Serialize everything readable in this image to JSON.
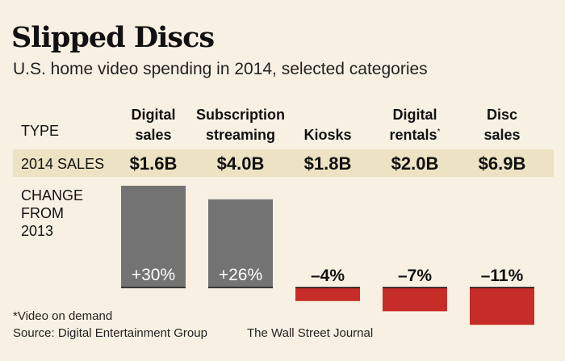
{
  "title": "Slipped Discs",
  "subtitle": "U.S. home video spending in 2014, selected categories",
  "row_labels": {
    "type": "TYPE",
    "sales": "2014 SALES",
    "change": [
      "CHANGE",
      "FROM",
      "2013"
    ]
  },
  "chart_data": {
    "type": "bar",
    "title": "Slipped Discs",
    "subtitle": "U.S. home video spending in 2014, selected categories",
    "categories": [
      {
        "line1": "Digital",
        "line2": "sales",
        "note": ""
      },
      {
        "line1": "Subscription",
        "line2": "streaming",
        "note": ""
      },
      {
        "line1": "",
        "line2": "Kiosks",
        "note": ""
      },
      {
        "line1": "Digital",
        "line2": "rentals",
        "note": "*"
      },
      {
        "line1": "Disc",
        "line2": "sales",
        "note": ""
      }
    ],
    "sales_2014": [
      "$1.6B",
      "$4.0B",
      "$1.8B",
      "$2.0B",
      "$6.9B"
    ],
    "values": [
      30,
      26,
      -4,
      -7,
      -11
    ],
    "labels": [
      "+30%",
      "+26%",
      "–4%",
      "–7%",
      "–11%"
    ],
    "ylabel": "Change from 2013 (%)",
    "colors": {
      "positive": "#737373",
      "negative": "#c62d28",
      "band": "#ede2c3",
      "background": "#f8f1e3"
    }
  },
  "footnote": "*Video on demand",
  "source": "Source: Digital Entertainment Group",
  "credit": "The Wall Street Journal"
}
